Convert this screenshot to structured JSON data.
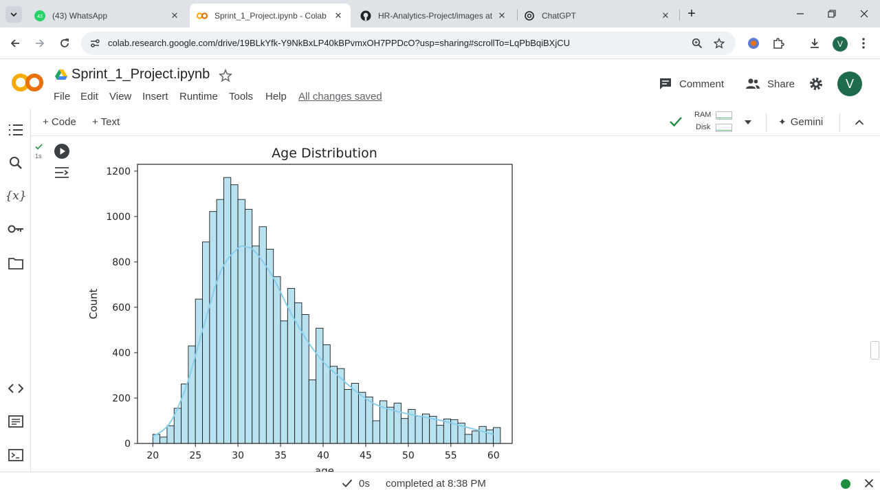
{
  "browser": {
    "tabs": [
      {
        "title": "(43) WhatsApp",
        "badge": "43"
      },
      {
        "title": "Sprint_1_Project.ipynb - Colab"
      },
      {
        "title": "HR-Analytics-Project/images at"
      },
      {
        "title": "ChatGPT"
      }
    ],
    "url": "colab.research.google.com/drive/19BLkYfk-Y9NkBxLP40kBPvmxOH7PPDcO?usp=sharing#scrollTo=LqPbBqiBXjCU",
    "profile_initial": "V"
  },
  "colab": {
    "logo": "CO",
    "notebook_title": "Sprint_1_Project.ipynb",
    "menu": [
      "File",
      "Edit",
      "View",
      "Insert",
      "Runtime",
      "Tools",
      "Help"
    ],
    "saved_status": "All changes saved",
    "comment_label": "Comment",
    "share_label": "Share",
    "avatar_initial": "V"
  },
  "cell_toolbar": {
    "add_code": "+ Code",
    "add_text": "+ Text",
    "ram_label": "RAM",
    "disk_label": "Disk",
    "gemini_label": "Gemini"
  },
  "cell": {
    "exec_time": "1s"
  },
  "chart_data": {
    "type": "bar",
    "title": "Age Distribution",
    "xlabel": "age",
    "ylabel": "Count",
    "xlim": [
      18.2,
      62.2
    ],
    "ylim": [
      0,
      1230
    ],
    "xticks": [
      20,
      25,
      30,
      35,
      40,
      45,
      50,
      55,
      60
    ],
    "yticks": [
      0,
      200,
      400,
      600,
      800,
      1000,
      1200
    ],
    "bin_start": 20,
    "bin_width": 0.833,
    "values": [
      40,
      28,
      78,
      155,
      262,
      430,
      636,
      888,
      1022,
      1075,
      1172,
      1140,
      1075,
      1032,
      870,
      955,
      856,
      735,
      540,
      683,
      620,
      568,
      280,
      508,
      435,
      340,
      330,
      238,
      265,
      225,
      205,
      100,
      188,
      160,
      178,
      110,
      150,
      120,
      130,
      120,
      80,
      108,
      105,
      90,
      40,
      55,
      75,
      60,
      70
    ],
    "kde": {
      "x": [
        20,
        22,
        24,
        26,
        28,
        30,
        31,
        32,
        34,
        36,
        38,
        40,
        42,
        44,
        46,
        48,
        50,
        52,
        54,
        56,
        58,
        60
      ],
      "y": [
        30,
        90,
        260,
        520,
        760,
        860,
        865,
        845,
        740,
        590,
        460,
        360,
        290,
        225,
        175,
        148,
        130,
        115,
        100,
        80,
        60,
        40
      ]
    },
    "colors": {
      "bar_fill": "#b9e2f1",
      "bar_edge": "#1a1a1a",
      "kde_line": "#87ceeb"
    }
  },
  "status": {
    "duration": "0s",
    "message": "completed at 8:38 PM"
  }
}
